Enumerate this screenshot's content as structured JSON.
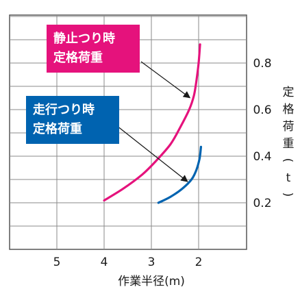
{
  "chart_data": {
    "type": "line",
    "xlabel": "作業半径(m)",
    "ylabel_chars": [
      "定",
      "格",
      "荷",
      "重",
      "(",
      "t",
      ")"
    ],
    "x_ticks": [
      "5",
      "4",
      "3",
      "2"
    ],
    "y_ticks": [
      "0.2",
      "0.4",
      "0.6",
      "0.8"
    ],
    "xlim": [
      6,
      1
    ],
    "ylim": [
      0,
      1
    ],
    "grid": true,
    "series": [
      {
        "label_lines": [
          "静止つり時",
          "定格荷重"
        ],
        "color": "#e5127c",
        "x": [
          4.0,
          3.6,
          3.2,
          2.9,
          2.6,
          2.4,
          2.2,
          2.1,
          2.05,
          2.0,
          1.97
        ],
        "y": [
          0.21,
          0.26,
          0.32,
          0.38,
          0.45,
          0.52,
          0.6,
          0.66,
          0.72,
          0.8,
          0.88
        ]
      },
      {
        "label_lines": [
          "走行つり時",
          "定格荷重"
        ],
        "color": "#0063b0",
        "x": [
          2.85,
          2.6,
          2.35,
          2.15,
          2.05,
          1.98,
          1.95
        ],
        "y": [
          0.2,
          0.225,
          0.26,
          0.3,
          0.34,
          0.39,
          0.44
        ]
      }
    ],
    "annotations": [
      {
        "series": 0,
        "x": 2.1,
        "y": 0.66
      },
      {
        "series": 1,
        "x": 2.15,
        "y": 0.3
      }
    ]
  }
}
